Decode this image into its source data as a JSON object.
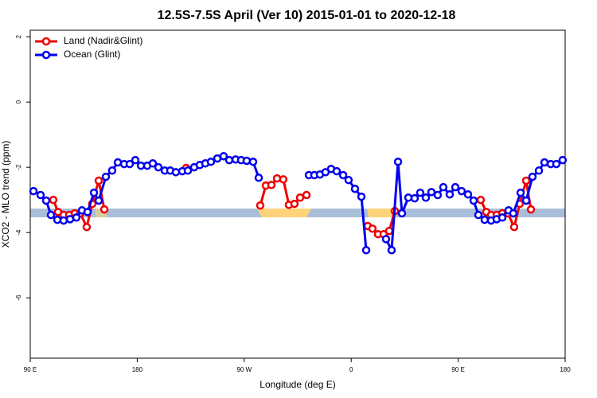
{
  "chart_data": {
    "type": "line",
    "title": "12.5S-7.5S April (Ver 10)   2015-01-01 to 2020-12-18",
    "x_label": "Longitude (deg E)",
    "y_label": "XCO2 - MLO trend (ppm)",
    "xlim": [
      90,
      540
    ],
    "ylim": [
      -7.85,
      2.2
    ],
    "xticks": [
      {
        "value": 90,
        "label": "90 E"
      },
      {
        "value": 180,
        "label": "180"
      },
      {
        "value": 270,
        "label": "90 W"
      },
      {
        "value": 360,
        "label": "0"
      },
      {
        "value": 450,
        "label": "90 E"
      },
      {
        "value": 540,
        "label": "180"
      }
    ],
    "yticks": [
      2,
      0,
      -2,
      -4,
      -6
    ],
    "legend": "top-left",
    "series": [
      {
        "name": "Land (Nadir&Glint)",
        "color": "#ee0000",
        "x": [
          109.4,
          113.4,
          118.1,
          122.8,
          127.5,
          132.2,
          137.5,
          142.2,
          147.6,
          152.3,
          null,
          221.2,
          null,
          283.5,
          288.2,
          292.9,
          297.6,
          302.9,
          307.6,
          312.3,
          317.0,
          322.4,
          null,
          373.9,
          377.9,
          382.6,
          387.3,
          392.0,
          396.7,
          null,
          469.0,
          473.7,
          477.7,
          482.4,
          487.1,
          491.8,
          497.1,
          501.8,
          507.2,
          511.2
        ],
        "values": [
          -3.0,
          -3.37,
          -3.46,
          -3.46,
          -3.41,
          -3.41,
          -3.83,
          -3.12,
          -2.41,
          -3.29,
          null,
          -2.02,
          null,
          -3.17,
          -2.56,
          -2.54,
          -2.34,
          -2.37,
          -3.15,
          -3.12,
          -2.93,
          -2.85,
          null,
          -3.8,
          -3.88,
          -4.05,
          -4.05,
          -3.95,
          -3.34,
          null,
          -3.0,
          -3.37,
          -3.46,
          -3.46,
          -3.41,
          -3.41,
          -3.83,
          -3.12,
          -2.41,
          -3.29
        ]
      },
      {
        "name": "Ocean (Glint)",
        "color": "#0000ee",
        "x": [
          92.7,
          98.7,
          103.4,
          107.4,
          112.8,
          118.1,
          123.5,
          128.8,
          133.5,
          138.2,
          143.6,
          147.6,
          153.6,
          158.9,
          163.7,
          169.0,
          173.7,
          178.4,
          183.1,
          188.4,
          193.1,
          197.8,
          203.2,
          207.8,
          212.5,
          217.9,
          222.6,
          227.9,
          232.6,
          237.3,
          242.0,
          247.4,
          252.7,
          257.4,
          262.8,
          267.4,
          272.1,
          277.5,
          282.2,
          null,
          324.4,
          329.0,
          333.7,
          338.4,
          343.1,
          347.8,
          353.2,
          357.8,
          363.2,
          368.6,
          372.6,
          null,
          389.3,
          394.0,
          399.4,
          402.7,
          408.1,
          413.4,
          418.1,
          422.8,
          427.5,
          432.8,
          437.5,
          442.9,
          447.6,
          452.9,
          458.3,
          463.0,
          467.0,
          472.3,
          477.7,
          482.4,
          487.1,
          492.4,
          496.4,
          502.5,
          507.2,
          512.5,
          517.9,
          522.6,
          527.9,
          532.6,
          537.9
        ],
        "values": [
          -2.73,
          -2.85,
          -3.02,
          -3.46,
          -3.61,
          -3.63,
          -3.59,
          -3.54,
          -3.32,
          -3.37,
          -2.78,
          -3.02,
          -2.29,
          -2.1,
          -1.85,
          -1.9,
          -1.9,
          -1.78,
          -1.95,
          -1.95,
          -1.88,
          -2.0,
          -2.1,
          -2.1,
          -2.15,
          -2.12,
          -2.1,
          -2.0,
          -1.93,
          -1.88,
          -1.83,
          -1.73,
          -1.66,
          -1.78,
          -1.76,
          -1.78,
          -1.8,
          -1.83,
          -2.32,
          null,
          -2.24,
          -2.24,
          -2.22,
          -2.15,
          -2.05,
          -2.12,
          -2.24,
          -2.39,
          -2.66,
          -2.9,
          -4.54,
          null,
          -4.2,
          -4.54,
          -1.83,
          -3.41,
          -2.93,
          -2.95,
          -2.78,
          -2.93,
          -2.76,
          -2.85,
          -2.61,
          -2.83,
          -2.61,
          -2.73,
          -2.83,
          -3.02,
          -3.46,
          -3.61,
          -3.63,
          -3.59,
          -3.54,
          -3.32,
          -3.41,
          -2.78,
          -3.02,
          -2.29,
          -2.1,
          -1.85,
          -1.9,
          -1.9,
          -1.78
        ]
      }
    ]
  }
}
